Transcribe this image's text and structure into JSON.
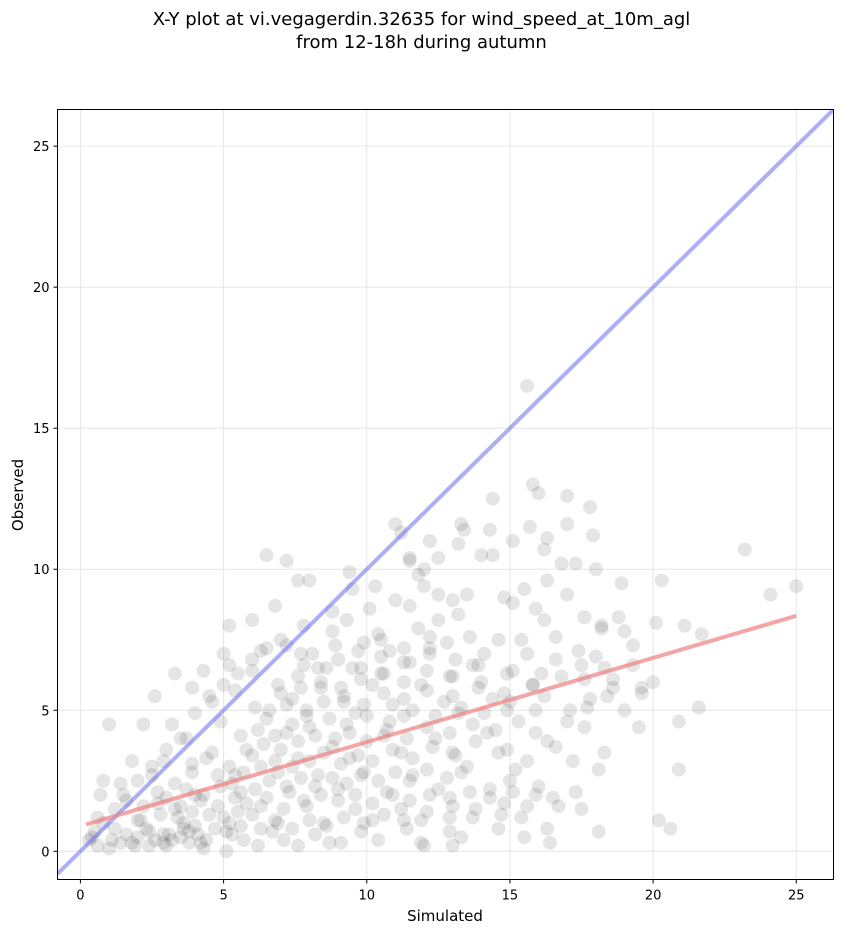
{
  "chart_data": {
    "type": "scatter",
    "title_line1": "X-Y plot at vi.vegagerdin.32635 for wind_speed_at_10m_agl",
    "title_line2": "from 12-18h during autumn",
    "xlabel": "Simulated",
    "ylabel": "Observed",
    "xlim": [
      -0.8,
      26.3
    ],
    "ylim": [
      -1.0,
      26.3
    ],
    "xticks": [
      0,
      5,
      10,
      15,
      20,
      25
    ],
    "yticks": [
      0,
      5,
      10,
      15,
      20,
      25
    ],
    "grid": true,
    "point_color": "#000000",
    "identity_line": {
      "color": "#6b6bf0",
      "from": [
        -0.8,
        -0.8
      ],
      "to": [
        26.3,
        26.3
      ]
    },
    "regression_line": {
      "color": "#f08080",
      "from": [
        0.2,
        0.95
      ],
      "to": [
        25.0,
        8.35
      ]
    },
    "points": [
      [
        15.6,
        16.5
      ],
      [
        15.8,
        13.0
      ],
      [
        16.0,
        12.7
      ],
      [
        14.4,
        12.5
      ],
      [
        17.0,
        12.6
      ],
      [
        17.8,
        12.2
      ],
      [
        11.0,
        11.6
      ],
      [
        13.4,
        11.4
      ],
      [
        13.3,
        11.6
      ],
      [
        15.7,
        11.5
      ],
      [
        17.0,
        11.6
      ],
      [
        17.9,
        11.2
      ],
      [
        11.2,
        11.3
      ],
      [
        14.3,
        11.4
      ],
      [
        12.2,
        11.0
      ],
      [
        16.3,
        11.1
      ],
      [
        15.1,
        11.0
      ],
      [
        13.2,
        10.9
      ],
      [
        16.2,
        10.7
      ],
      [
        23.2,
        10.7
      ],
      [
        6.5,
        10.5
      ],
      [
        7.2,
        10.3
      ],
      [
        11.5,
        10.4
      ],
      [
        12.5,
        10.4
      ],
      [
        14.0,
        10.5
      ],
      [
        14.4,
        10.5
      ],
      [
        16.8,
        10.2
      ],
      [
        17.3,
        10.2
      ],
      [
        11.5,
        10.3
      ],
      [
        12.0,
        10.0
      ],
      [
        9.4,
        9.9
      ],
      [
        11.8,
        9.8
      ],
      [
        18.0,
        10.0
      ],
      [
        20.3,
        9.6
      ],
      [
        16.3,
        9.6
      ],
      [
        18.9,
        9.5
      ],
      [
        25.0,
        9.4
      ],
      [
        10.3,
        9.4
      ],
      [
        15.5,
        9.3
      ],
      [
        12.0,
        9.4
      ],
      [
        8.0,
        9.6
      ],
      [
        7.6,
        9.6
      ],
      [
        9.5,
        9.3
      ],
      [
        13.5,
        9.1
      ],
      [
        14.8,
        9.0
      ],
      [
        24.1,
        9.1
      ],
      [
        17.0,
        9.1
      ],
      [
        13.0,
        8.9
      ],
      [
        11.0,
        8.9
      ],
      [
        12.5,
        9.1
      ],
      [
        11.5,
        8.7
      ],
      [
        10.1,
        8.6
      ],
      [
        8.8,
        8.5
      ],
      [
        6.8,
        8.7
      ],
      [
        15.9,
        8.6
      ],
      [
        15.1,
        8.8
      ],
      [
        13.2,
        8.4
      ],
      [
        12.5,
        8.2
      ],
      [
        16.2,
        8.2
      ],
      [
        18.8,
        8.3
      ],
      [
        20.1,
        8.1
      ],
      [
        21.1,
        8.0
      ],
      [
        18.2,
        8.0
      ],
      [
        17.6,
        8.3
      ],
      [
        9.3,
        8.2
      ],
      [
        7.8,
        8.0
      ],
      [
        5.2,
        8.0
      ],
      [
        6.0,
        8.2
      ],
      [
        8.8,
        7.8
      ],
      [
        10.4,
        7.7
      ],
      [
        11.8,
        7.9
      ],
      [
        13.6,
        7.6
      ],
      [
        14.6,
        7.5
      ],
      [
        15.4,
        7.5
      ],
      [
        16.6,
        7.6
      ],
      [
        18.2,
        7.9
      ],
      [
        19.0,
        7.8
      ],
      [
        21.7,
        7.7
      ],
      [
        12.8,
        7.4
      ],
      [
        9.9,
        7.4
      ],
      [
        7.2,
        7.3
      ],
      [
        5.0,
        7.0
      ],
      [
        6.3,
        7.1
      ],
      [
        7.7,
        7.0
      ],
      [
        10.8,
        7.1
      ],
      [
        12.2,
        7.2
      ],
      [
        14.1,
        7.0
      ],
      [
        15.6,
        7.0
      ],
      [
        17.4,
        7.1
      ],
      [
        19.3,
        7.3
      ],
      [
        18.0,
        6.9
      ],
      [
        16.6,
        6.8
      ],
      [
        13.7,
        6.6
      ],
      [
        11.5,
        6.7
      ],
      [
        9.5,
        6.5
      ],
      [
        7.8,
        6.6
      ],
      [
        6.0,
        6.4
      ],
      [
        4.3,
        6.4
      ],
      [
        3.3,
        6.3
      ],
      [
        5.2,
        6.6
      ],
      [
        8.6,
        6.5
      ],
      [
        10.6,
        6.3
      ],
      [
        12.9,
        6.2
      ],
      [
        15.1,
        6.4
      ],
      [
        16.1,
        6.3
      ],
      [
        18.3,
        6.5
      ],
      [
        20.0,
        6.0
      ],
      [
        19.6,
        5.8
      ],
      [
        17.6,
        6.1
      ],
      [
        15.8,
        5.9
      ],
      [
        14.0,
        6.0
      ],
      [
        11.9,
        5.9
      ],
      [
        10.2,
        5.9
      ],
      [
        8.4,
        5.8
      ],
      [
        6.9,
        5.9
      ],
      [
        5.4,
        5.7
      ],
      [
        3.9,
        5.8
      ],
      [
        2.6,
        5.5
      ],
      [
        4.6,
        5.3
      ],
      [
        6.1,
        5.1
      ],
      [
        7.4,
        5.4
      ],
      [
        9.2,
        5.3
      ],
      [
        10.9,
        5.2
      ],
      [
        12.7,
        5.3
      ],
      [
        14.4,
        5.4
      ],
      [
        16.2,
        5.5
      ],
      [
        17.8,
        5.4
      ],
      [
        18.6,
        5.8
      ],
      [
        19.6,
        5.6
      ],
      [
        19.0,
        5.0
      ],
      [
        17.1,
        5.0
      ],
      [
        14.9,
        5.0
      ],
      [
        13.2,
        4.9
      ],
      [
        11.3,
        4.8
      ],
      [
        9.6,
        4.9
      ],
      [
        7.9,
        4.8
      ],
      [
        6.5,
        4.7
      ],
      [
        4.9,
        4.6
      ],
      [
        3.2,
        4.5
      ],
      [
        1.0,
        4.5
      ],
      [
        2.2,
        4.5
      ],
      [
        3.7,
        4.0
      ],
      [
        5.6,
        4.1
      ],
      [
        7.2,
        4.2
      ],
      [
        8.9,
        4.0
      ],
      [
        10.6,
        4.1
      ],
      [
        12.4,
        4.0
      ],
      [
        14.2,
        4.2
      ],
      [
        15.9,
        4.2
      ],
      [
        17.6,
        4.4
      ],
      [
        19.5,
        4.4
      ],
      [
        20.9,
        4.6
      ],
      [
        21.6,
        5.1
      ],
      [
        18.3,
        3.5
      ],
      [
        16.6,
        3.7
      ],
      [
        14.9,
        3.6
      ],
      [
        13.1,
        3.4
      ],
      [
        11.2,
        3.5
      ],
      [
        9.4,
        3.3
      ],
      [
        7.6,
        3.3
      ],
      [
        6.0,
        3.4
      ],
      [
        4.4,
        3.3
      ],
      [
        2.9,
        3.2
      ],
      [
        1.8,
        3.2
      ],
      [
        0.8,
        2.5
      ],
      [
        1.4,
        2.4
      ],
      [
        2.5,
        2.7
      ],
      [
        3.9,
        2.8
      ],
      [
        5.4,
        2.7
      ],
      [
        6.9,
        2.8
      ],
      [
        8.3,
        2.7
      ],
      [
        9.9,
        2.8
      ],
      [
        11.6,
        2.7
      ],
      [
        13.3,
        2.8
      ],
      [
        15.2,
        2.9
      ],
      [
        17.2,
        3.2
      ],
      [
        18.1,
        2.9
      ],
      [
        20.9,
        2.9
      ],
      [
        16.0,
        2.3
      ],
      [
        14.3,
        2.2
      ],
      [
        12.5,
        2.2
      ],
      [
        10.7,
        2.1
      ],
      [
        9.0,
        2.2
      ],
      [
        7.3,
        2.1
      ],
      [
        5.6,
        2.1
      ],
      [
        4.0,
        2.0
      ],
      [
        2.7,
        2.1
      ],
      [
        0.7,
        2.0
      ],
      [
        1.6,
        1.8
      ],
      [
        3.3,
        1.5
      ],
      [
        4.8,
        1.6
      ],
      [
        6.3,
        1.6
      ],
      [
        7.9,
        1.6
      ],
      [
        9.6,
        1.5
      ],
      [
        11.2,
        1.5
      ],
      [
        13.0,
        1.6
      ],
      [
        14.8,
        1.7
      ],
      [
        16.7,
        1.6
      ],
      [
        17.5,
        1.5
      ],
      [
        15.4,
        1.2
      ],
      [
        13.7,
        1.2
      ],
      [
        11.9,
        1.1
      ],
      [
        10.2,
        1.1
      ],
      [
        8.5,
        1.0
      ],
      [
        6.8,
        1.1
      ],
      [
        5.2,
        1.0
      ],
      [
        3.6,
        1.0
      ],
      [
        2.0,
        1.1
      ],
      [
        0.6,
        1.2
      ],
      [
        1.2,
        0.8
      ],
      [
        2.4,
        0.7
      ],
      [
        3.8,
        0.7
      ],
      [
        5.3,
        0.6
      ],
      [
        6.7,
        0.7
      ],
      [
        8.2,
        0.6
      ],
      [
        9.8,
        0.7
      ],
      [
        11.4,
        0.8
      ],
      [
        12.9,
        0.7
      ],
      [
        14.6,
        0.8
      ],
      [
        16.3,
        0.8
      ],
      [
        18.1,
        0.7
      ],
      [
        20.2,
        1.1
      ],
      [
        20.6,
        0.8
      ],
      [
        15.5,
        0.5
      ],
      [
        13.3,
        0.5
      ],
      [
        11.9,
        0.3
      ],
      [
        10.4,
        0.4
      ],
      [
        8.7,
        0.3
      ],
      [
        7.1,
        0.4
      ],
      [
        5.7,
        0.4
      ],
      [
        4.2,
        0.3
      ],
      [
        2.9,
        0.3
      ],
      [
        1.4,
        0.3
      ],
      [
        0.4,
        0.5
      ],
      [
        1.0,
        0.1
      ],
      [
        1.9,
        0.2
      ],
      [
        3.0,
        0.2
      ],
      [
        4.3,
        0.1
      ],
      [
        5.1,
        0.0
      ],
      [
        6.2,
        0.2
      ],
      [
        7.6,
        0.2
      ],
      [
        9.1,
        0.3
      ],
      [
        12.0,
        0.2
      ],
      [
        13.0,
        0.2
      ],
      [
        16.4,
        0.3
      ],
      [
        2.0,
        0.5
      ],
      [
        2.3,
        0.8
      ],
      [
        2.6,
        0.4
      ],
      [
        2.9,
        0.6
      ],
      [
        3.2,
        0.4
      ],
      [
        3.5,
        0.5
      ],
      [
        3.8,
        0.3
      ],
      [
        4.1,
        0.6
      ],
      [
        4.4,
        0.4
      ],
      [
        2.1,
        1.1
      ],
      [
        2.8,
        1.3
      ],
      [
        3.4,
        1.2
      ],
      [
        3.9,
        1.4
      ],
      [
        4.5,
        1.3
      ],
      [
        5.0,
        1.2
      ],
      [
        5.5,
        1.4
      ],
      [
        6.0,
        1.3
      ],
      [
        2.2,
        1.6
      ],
      [
        3.0,
        1.9
      ],
      [
        3.7,
        2.2
      ],
      [
        4.3,
        2.0
      ],
      [
        4.9,
        2.3
      ],
      [
        5.4,
        1.9
      ],
      [
        6.1,
        2.2
      ],
      [
        6.6,
        2.5
      ],
      [
        7.2,
        2.3
      ],
      [
        7.7,
        2.6
      ],
      [
        8.2,
        2.3
      ],
      [
        8.8,
        2.6
      ],
      [
        9.3,
        2.4
      ],
      [
        9.8,
        2.7
      ],
      [
        10.4,
        2.5
      ],
      [
        11.0,
        2.8
      ],
      [
        11.5,
        2.5
      ],
      [
        12.1,
        2.9
      ],
      [
        12.8,
        2.6
      ],
      [
        13.5,
        3.0
      ],
      [
        5.2,
        3.0
      ],
      [
        5.7,
        2.8
      ],
      [
        6.3,
        3.0
      ],
      [
        6.8,
        3.2
      ],
      [
        7.4,
        3.0
      ],
      [
        8.0,
        3.2
      ],
      [
        8.5,
        3.5
      ],
      [
        9.1,
        3.1
      ],
      [
        9.7,
        3.4
      ],
      [
        10.2,
        3.2
      ],
      [
        10.9,
        3.6
      ],
      [
        11.6,
        3.3
      ],
      [
        12.3,
        3.7
      ],
      [
        13.0,
        3.5
      ],
      [
        13.8,
        3.9
      ],
      [
        14.6,
        3.5
      ],
      [
        5.8,
        3.6
      ],
      [
        6.4,
        3.8
      ],
      [
        7.0,
        3.6
      ],
      [
        7.6,
        3.9
      ],
      [
        8.2,
        4.1
      ],
      [
        8.8,
        3.7
      ],
      [
        9.4,
        4.2
      ],
      [
        10.0,
        3.9
      ],
      [
        10.7,
        4.3
      ],
      [
        11.4,
        4.0
      ],
      [
        12.1,
        4.4
      ],
      [
        12.9,
        4.2
      ],
      [
        13.7,
        4.5
      ],
      [
        14.5,
        4.3
      ],
      [
        15.3,
        4.6
      ],
      [
        6.2,
        4.3
      ],
      [
        6.8,
        4.1
      ],
      [
        7.4,
        4.5
      ],
      [
        8.0,
        4.4
      ],
      [
        8.7,
        4.7
      ],
      [
        9.3,
        4.5
      ],
      [
        10.0,
        4.8
      ],
      [
        10.8,
        4.6
      ],
      [
        11.6,
        5.0
      ],
      [
        12.4,
        4.8
      ],
      [
        13.3,
        5.1
      ],
      [
        14.1,
        4.9
      ],
      [
        15.0,
        5.3
      ],
      [
        15.9,
        5.0
      ],
      [
        6.6,
        5.0
      ],
      [
        7.2,
        5.2
      ],
      [
        7.9,
        5.0
      ],
      [
        8.5,
        5.3
      ],
      [
        9.2,
        5.5
      ],
      [
        9.9,
        5.2
      ],
      [
        10.6,
        5.6
      ],
      [
        11.3,
        5.4
      ],
      [
        12.1,
        5.7
      ],
      [
        13.0,
        5.5
      ],
      [
        13.9,
        5.8
      ],
      [
        14.8,
        5.6
      ],
      [
        15.8,
        5.9
      ],
      [
        7.0,
        5.6
      ],
      [
        7.7,
        5.8
      ],
      [
        8.4,
        6.0
      ],
      [
        9.1,
        5.8
      ],
      [
        9.8,
        6.1
      ],
      [
        10.5,
        6.3
      ],
      [
        11.3,
        6.0
      ],
      [
        12.1,
        6.4
      ],
      [
        13.0,
        6.2
      ],
      [
        13.9,
        6.6
      ],
      [
        14.9,
        6.3
      ],
      [
        7.6,
        6.2
      ],
      [
        8.3,
        6.5
      ],
      [
        9.0,
        6.8
      ],
      [
        9.8,
        6.5
      ],
      [
        10.5,
        6.9
      ],
      [
        11.3,
        6.7
      ],
      [
        12.2,
        7.0
      ],
      [
        13.1,
        6.8
      ],
      [
        8.1,
        7.0
      ],
      [
        8.9,
        7.3
      ],
      [
        9.7,
        7.1
      ],
      [
        10.5,
        7.5
      ],
      [
        11.3,
        7.2
      ],
      [
        12.2,
        7.6
      ],
      [
        4.0,
        4.9
      ],
      [
        4.5,
        5.5
      ],
      [
        5.0,
        5.9
      ],
      [
        5.5,
        6.3
      ],
      [
        6.0,
        6.8
      ],
      [
        6.5,
        7.2
      ],
      [
        7.0,
        7.5
      ],
      [
        3.5,
        4.0
      ],
      [
        3.0,
        3.6
      ],
      [
        2.5,
        3.0
      ],
      [
        2.0,
        2.5
      ],
      [
        1.5,
        2.0
      ],
      [
        1.2,
        1.5
      ],
      [
        0.8,
        1.0
      ],
      [
        0.5,
        0.7
      ],
      [
        0.3,
        0.4
      ],
      [
        0.6,
        0.2
      ],
      [
        1.1,
        0.4
      ],
      [
        1.6,
        0.6
      ],
      [
        1.8,
        0.3
      ],
      [
        2.4,
        0.2
      ],
      [
        3.1,
        0.6
      ],
      [
        3.6,
        0.8
      ],
      [
        4.0,
        0.9
      ],
      [
        4.7,
        0.8
      ],
      [
        5.1,
        0.7
      ],
      [
        5.6,
        0.9
      ],
      [
        6.3,
        0.8
      ],
      [
        6.9,
        1.0
      ],
      [
        7.4,
        0.8
      ],
      [
        8.0,
        1.1
      ],
      [
        8.6,
        0.9
      ],
      [
        9.2,
        1.2
      ],
      [
        9.9,
        1.0
      ],
      [
        10.6,
        1.3
      ],
      [
        11.3,
        1.1
      ],
      [
        12.1,
        1.4
      ],
      [
        12.9,
        1.2
      ],
      [
        13.8,
        1.5
      ],
      [
        14.7,
        1.3
      ],
      [
        15.6,
        1.6
      ],
      [
        16.5,
        1.9
      ],
      [
        17.3,
        2.1
      ],
      [
        15.0,
        2.5
      ],
      [
        15.6,
        3.2
      ],
      [
        16.3,
        3.9
      ],
      [
        17.0,
        4.6
      ],
      [
        17.7,
        5.1
      ],
      [
        18.4,
        5.5
      ],
      [
        16.8,
        6.2
      ],
      [
        17.5,
        6.6
      ],
      [
        18.6,
        6.1
      ],
      [
        19.3,
        6.6
      ],
      [
        4.8,
        2.7
      ],
      [
        5.3,
        2.4
      ],
      [
        4.6,
        3.5
      ],
      [
        3.9,
        3.1
      ],
      [
        3.3,
        2.4
      ],
      [
        2.7,
        1.7
      ],
      [
        3.5,
        1.6
      ],
      [
        4.2,
        1.8
      ],
      [
        5.8,
        1.7
      ],
      [
        6.5,
        1.9
      ],
      [
        7.1,
        1.5
      ],
      [
        7.8,
        1.8
      ],
      [
        8.4,
        2.0
      ],
      [
        9.0,
        1.8
      ],
      [
        9.6,
        2.0
      ],
      [
        10.2,
        1.7
      ],
      [
        10.9,
        2.0
      ],
      [
        11.5,
        1.8
      ],
      [
        12.2,
        2.0
      ],
      [
        12.9,
        1.9
      ],
      [
        13.6,
        2.1
      ],
      [
        14.3,
        1.9
      ],
      [
        15.1,
        2.1
      ],
      [
        15.9,
        2.0
      ]
    ]
  }
}
